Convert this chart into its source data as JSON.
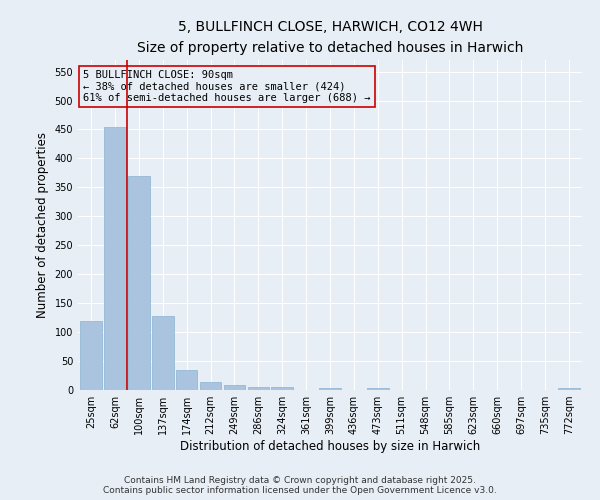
{
  "title": "5, BULLFINCH CLOSE, HARWICH, CO12 4WH",
  "subtitle": "Size of property relative to detached houses in Harwich",
  "xlabel": "Distribution of detached houses by size in Harwich",
  "ylabel": "Number of detached properties",
  "categories": [
    "25sqm",
    "62sqm",
    "100sqm",
    "137sqm",
    "174sqm",
    "212sqm",
    "249sqm",
    "286sqm",
    "324sqm",
    "361sqm",
    "399sqm",
    "436sqm",
    "473sqm",
    "511sqm",
    "548sqm",
    "585sqm",
    "623sqm",
    "660sqm",
    "697sqm",
    "735sqm",
    "772sqm"
  ],
  "values": [
    120,
    455,
    370,
    128,
    35,
    14,
    9,
    5,
    5,
    0,
    3,
    0,
    3,
    0,
    0,
    0,
    0,
    0,
    0,
    0,
    3
  ],
  "bar_color": "#aac4e0",
  "bar_edgecolor": "#8ab4d4",
  "background_color": "#e8eef5",
  "grid_color": "#ffffff",
  "vline_x": 1.5,
  "vline_color": "#cc0000",
  "annotation_text": "5 BULLFINCH CLOSE: 90sqm\n← 38% of detached houses are smaller (424)\n61% of semi-detached houses are larger (688) →",
  "annotation_box_edgecolor": "#cc0000",
  "ylim": [
    0,
    570
  ],
  "yticks": [
    0,
    50,
    100,
    150,
    200,
    250,
    300,
    350,
    400,
    450,
    500,
    550
  ],
  "footer_line1": "Contains HM Land Registry data © Crown copyright and database right 2025.",
  "footer_line2": "Contains public sector information licensed under the Open Government Licence v3.0.",
  "title_fontsize": 10,
  "subtitle_fontsize": 9,
  "label_fontsize": 8.5,
  "tick_fontsize": 7,
  "annotation_fontsize": 7.5,
  "footer_fontsize": 6.5
}
